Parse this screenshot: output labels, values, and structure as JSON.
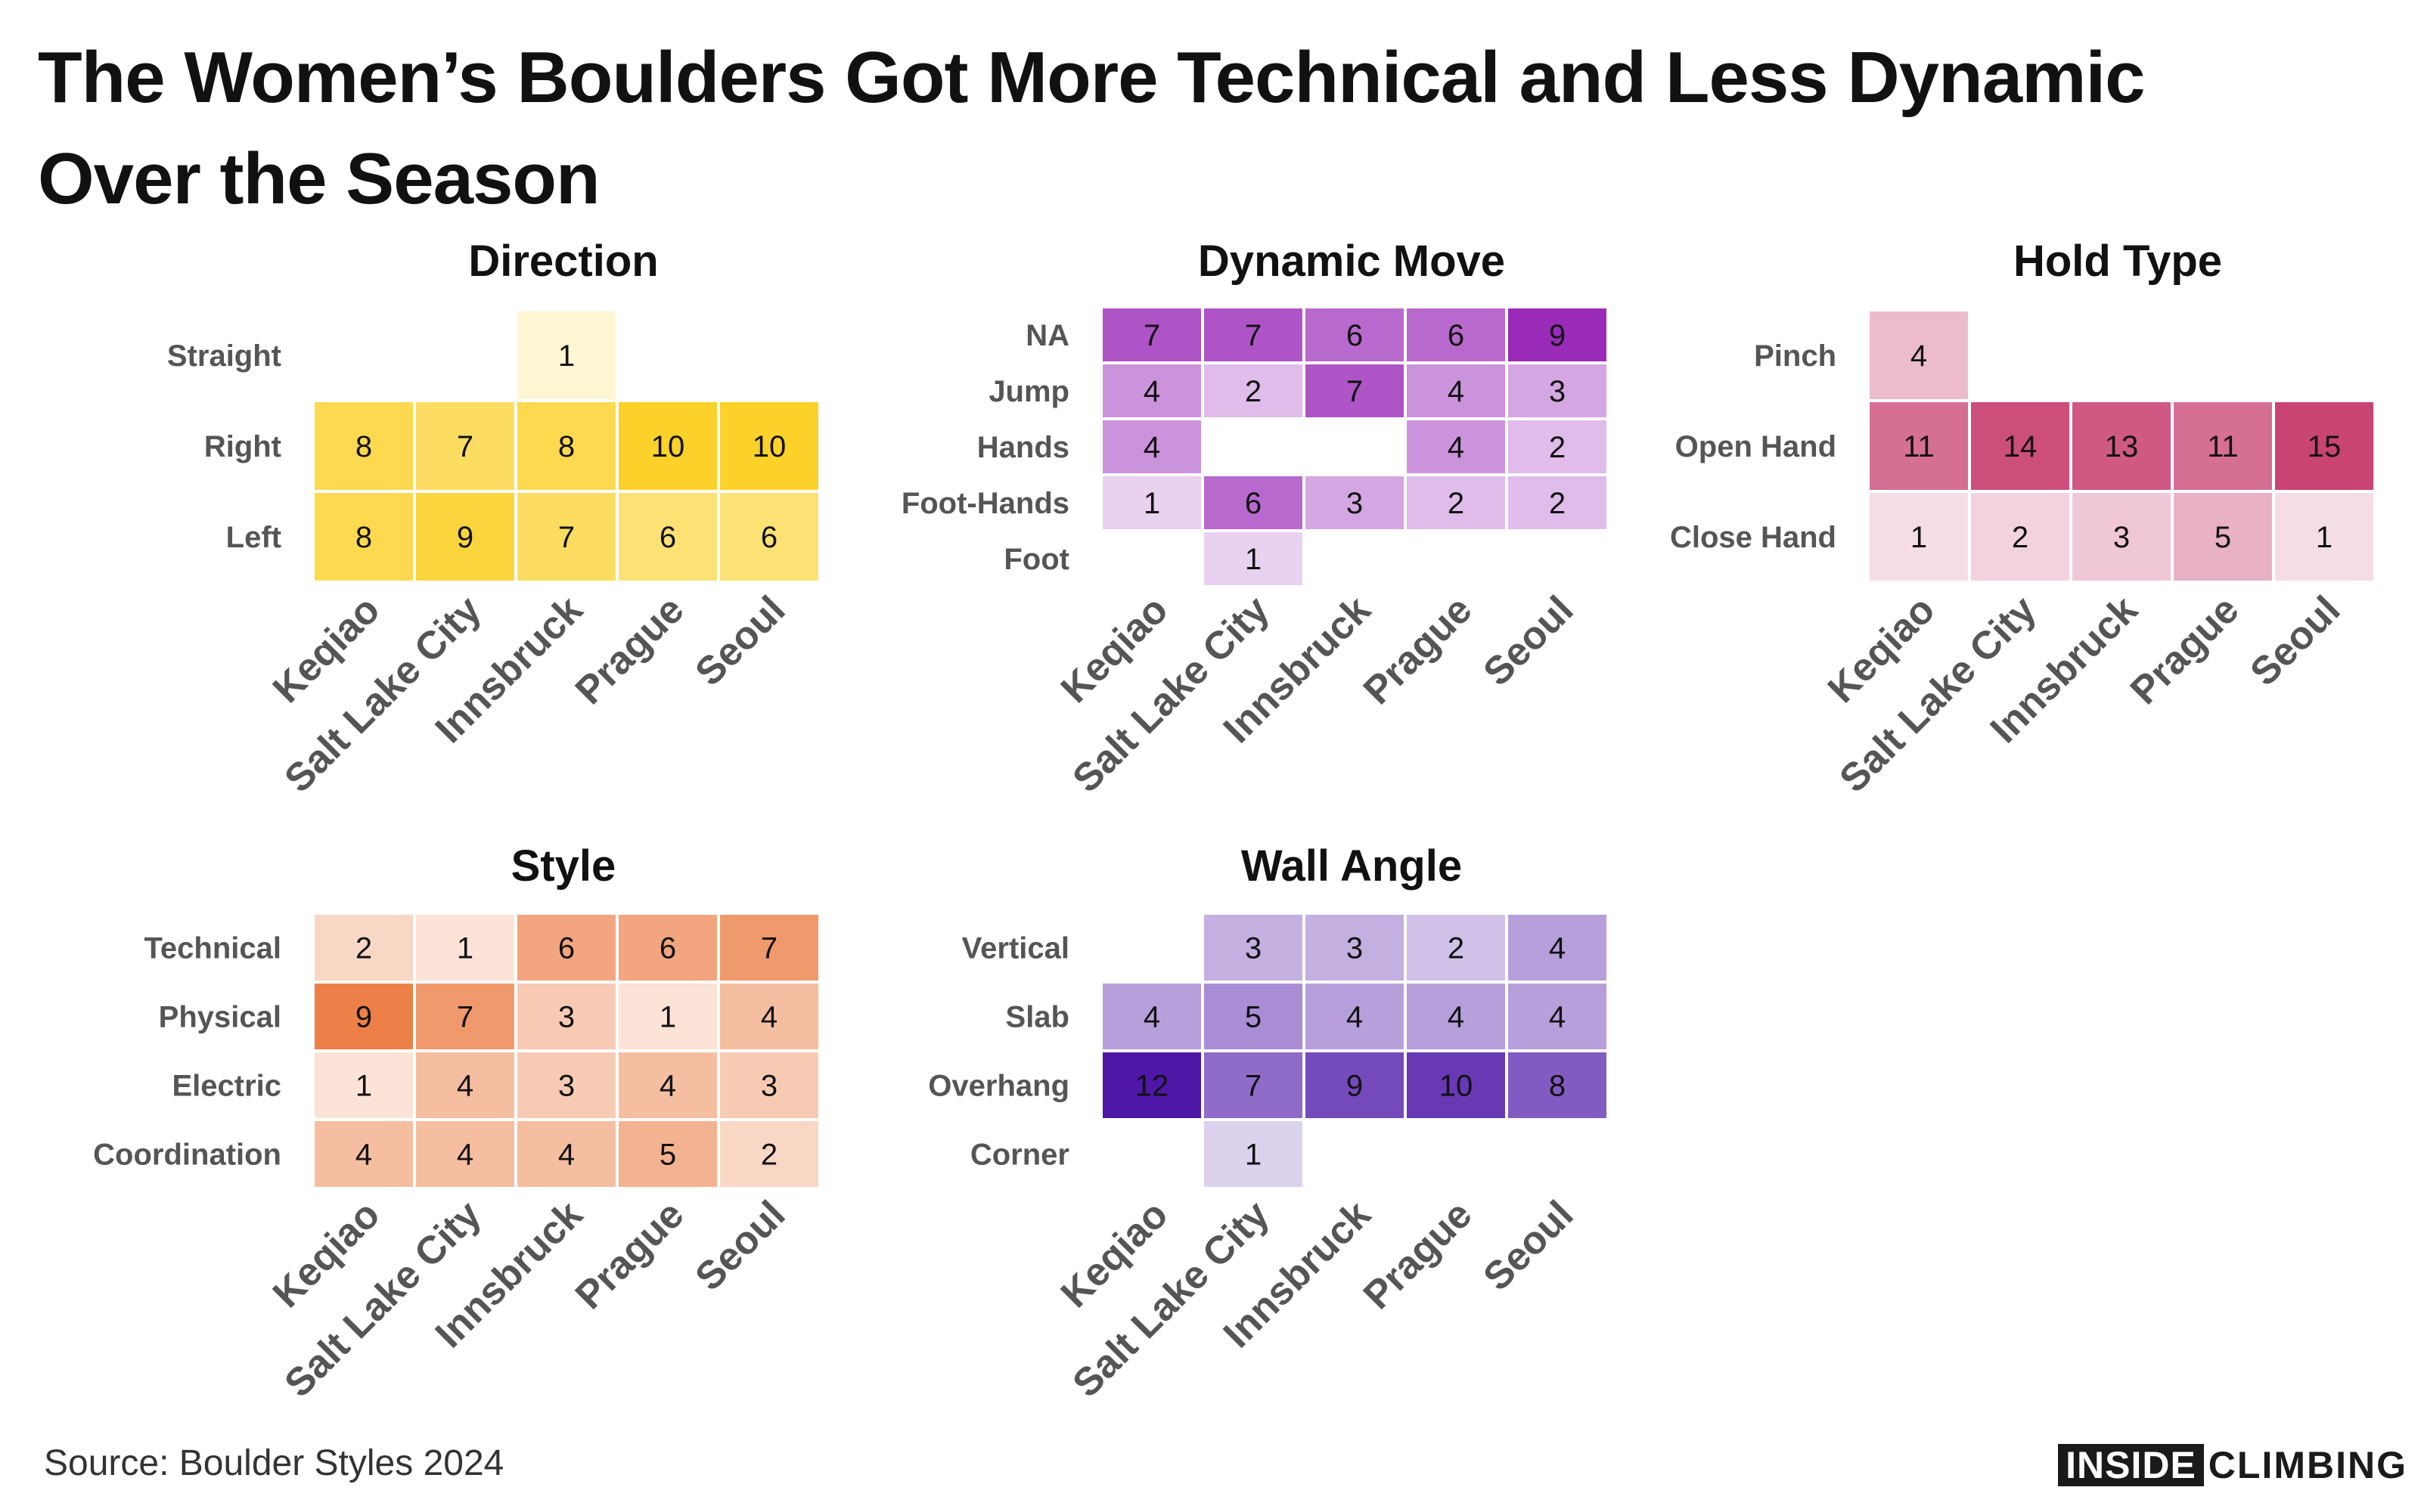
{
  "title": "The Women’s Boulders Got More Technical and Less Dynamic Over the Season",
  "source": "Source: Boulder Styles 2024",
  "logo": {
    "part1": "INSIDE",
    "part2": "CLIMBING"
  },
  "chart_data": [
    {
      "type": "heatmap",
      "title": "Direction",
      "categories": [
        "Keqiao",
        "Salt Lake City",
        "Innsbruck",
        "Prague",
        "Seoul"
      ],
      "rows": [
        "Straight",
        "Right",
        "Left"
      ],
      "values": [
        [
          null,
          null,
          1,
          null,
          null
        ],
        [
          8,
          7,
          8,
          10,
          10
        ],
        [
          8,
          9,
          7,
          6,
          6
        ]
      ],
      "color": "#fbd12a",
      "vmax": 10
    },
    {
      "type": "heatmap",
      "title": "Dynamic Move",
      "categories": [
        "Keqiao",
        "Salt Lake City",
        "Innsbruck",
        "Prague",
        "Seoul"
      ],
      "rows": [
        "NA",
        "Jump",
        "Hands",
        "Foot-Hands",
        "Foot"
      ],
      "values": [
        [
          7,
          7,
          6,
          6,
          9
        ],
        [
          4,
          2,
          7,
          4,
          3
        ],
        [
          4,
          null,
          null,
          4,
          2
        ],
        [
          1,
          6,
          3,
          2,
          2
        ],
        [
          null,
          1,
          null,
          null,
          null
        ]
      ],
      "color": "#9a2bb8",
      "vmax": 9
    },
    {
      "type": "heatmap",
      "title": "Hold Type",
      "categories": [
        "Keqiao",
        "Salt Lake City",
        "Innsbruck",
        "Prague",
        "Seoul"
      ],
      "rows": [
        "Pinch",
        "Open Hand",
        "Close Hand"
      ],
      "values": [
        [
          4,
          null,
          null,
          null,
          null
        ],
        [
          11,
          14,
          13,
          11,
          15
        ],
        [
          1,
          2,
          3,
          5,
          1
        ]
      ],
      "color": "#c94373",
      "vmax": 15
    },
    {
      "type": "heatmap",
      "title": "Style",
      "categories": [
        "Keqiao",
        "Salt Lake City",
        "Innsbruck",
        "Prague",
        "Seoul"
      ],
      "rows": [
        "Technical",
        "Physical",
        "Electric",
        "Coordination"
      ],
      "values": [
        [
          2,
          1,
          6,
          6,
          7
        ],
        [
          9,
          7,
          3,
          1,
          4
        ],
        [
          1,
          4,
          3,
          4,
          3
        ],
        [
          4,
          4,
          4,
          5,
          2
        ]
      ],
      "color": "#ec8048",
      "vmax": 9
    },
    {
      "type": "heatmap",
      "title": "Wall Angle",
      "categories": [
        "Keqiao",
        "Salt Lake City",
        "Innsbruck",
        "Prague",
        "Seoul"
      ],
      "rows": [
        "Vertical",
        "Slab",
        "Overhang",
        "Corner"
      ],
      "values": [
        [
          null,
          3,
          3,
          2,
          4
        ],
        [
          4,
          5,
          4,
          4,
          4
        ],
        [
          12,
          7,
          9,
          10,
          8
        ],
        [
          null,
          1,
          null,
          null,
          null
        ]
      ],
      "color": "#4e17a8",
      "vmax": 12
    }
  ]
}
